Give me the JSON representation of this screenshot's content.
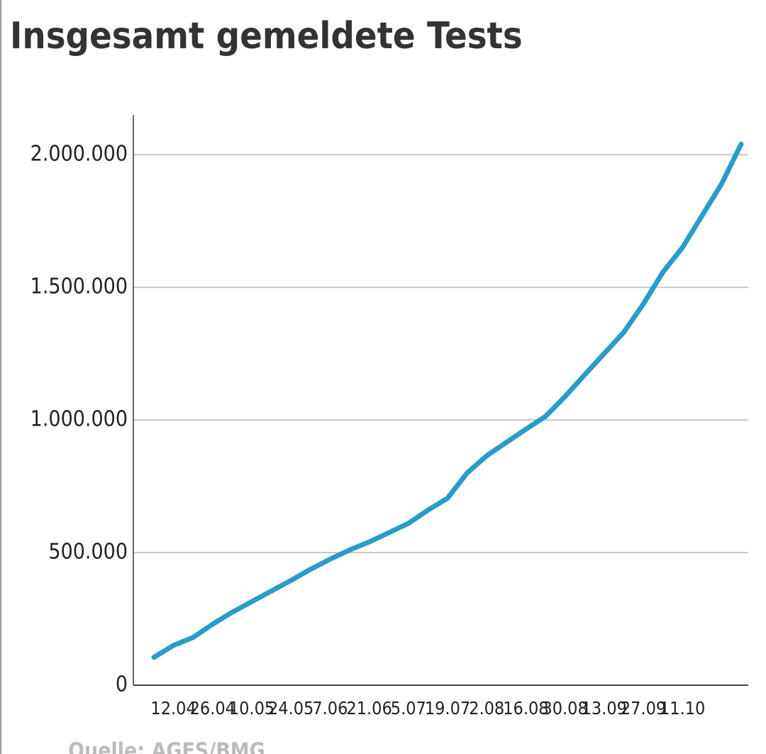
{
  "chart_data": {
    "type": "line",
    "title": "Insgesamt gemeldete Tests",
    "source": "Quelle: AGES/BMG",
    "categories": [
      null,
      "12.04",
      null,
      "26.04",
      null,
      "10.05",
      null,
      "24.05",
      null,
      "7.06",
      null,
      "21.06",
      null,
      "5.07",
      null,
      "19.07",
      null,
      "2.08",
      null,
      "16.08",
      null,
      "30.08",
      null,
      "13.09",
      null,
      "27.09",
      null,
      "11.10",
      null,
      null,
      null
    ],
    "series": [
      {
        "name": "Tests",
        "color": "#2a9cc8",
        "values": [
          105000,
          150000,
          180000,
          230000,
          275000,
          315000,
          355000,
          395000,
          437000,
          475000,
          510000,
          540000,
          575000,
          610000,
          660000,
          705000,
          800000,
          865000,
          915000,
          965000,
          1013000,
          1088000,
          1170000,
          1250000,
          1330000,
          1437000,
          1557000,
          1650000,
          1770000,
          1890000,
          2040000
        ]
      }
    ],
    "ylim": [
      0,
      2150000
    ],
    "yticks": [
      0,
      {
        "value": 500000,
        "label": "500.000"
      },
      {
        "value": 1000000,
        "label": "1.000.000"
      },
      {
        "value": 1500000,
        "label": "1.500.000"
      },
      {
        "value": 2000000,
        "label": "2.000.000"
      }
    ],
    "grid": true
  }
}
